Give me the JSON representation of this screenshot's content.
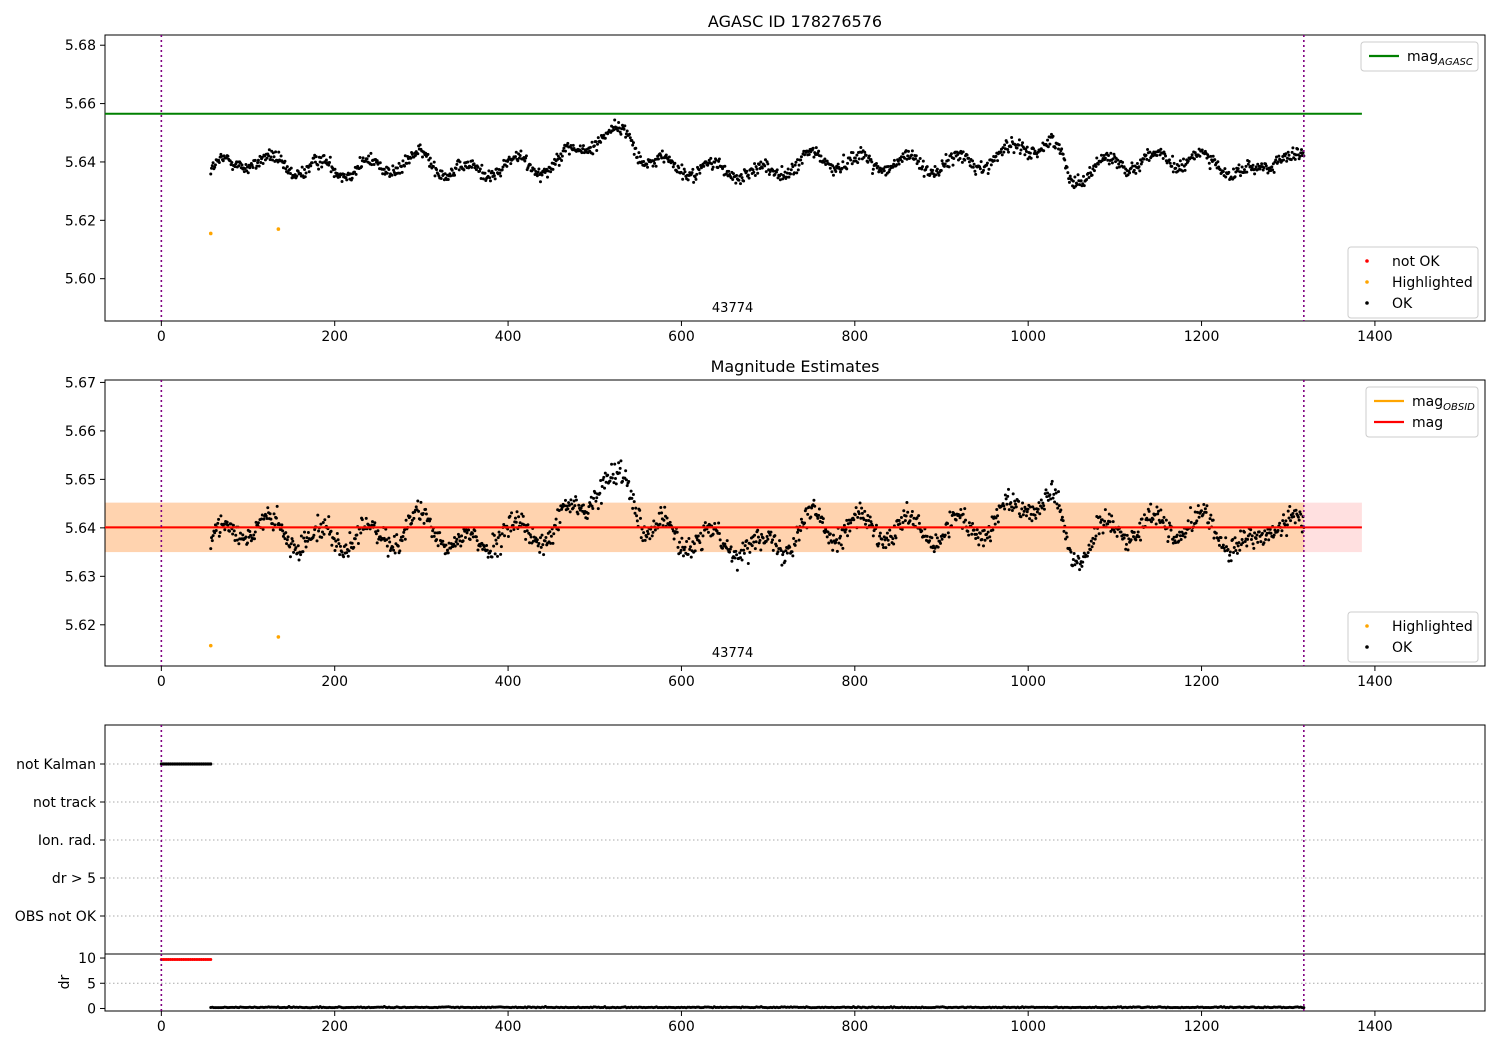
{
  "chart_data": [
    {
      "type": "scatter",
      "title": "AGASC ID 178276576",
      "xlabel": "",
      "ylabel": "",
      "xlim": [
        -65,
        1527
      ],
      "ylim": [
        5.5855,
        5.6835
      ],
      "xticks": [
        0,
        200,
        400,
        600,
        800,
        1000,
        1200,
        1400
      ],
      "yticks": [
        5.6,
        5.62,
        5.64,
        5.66,
        5.68
      ],
      "ytick_format": 2,
      "vlines": [
        0,
        1318
      ],
      "hlines": [
        {
          "name": "mag_AGASC",
          "y": 5.6565,
          "x_range": [
            -65,
            1385
          ],
          "color": "#008000"
        }
      ],
      "obsid_label": {
        "text": "43774",
        "x": 659
      },
      "legend_lines": [
        {
          "label": "mag",
          "sub": "AGASC",
          "color": "#008000"
        }
      ],
      "legend_points": [
        {
          "label": "not OK",
          "color": "#ff0000"
        },
        {
          "label": "Highlighted",
          "color": "#ffa500"
        },
        {
          "label": "OK",
          "color": "#000000"
        }
      ],
      "series": [
        {
          "name": "Highlighted",
          "color": "#ffa500",
          "points": [
            [
              57,
              5.6155
            ],
            [
              135,
              5.617
            ]
          ]
        },
        {
          "name": "OK",
          "color": "#000000",
          "x_range": [
            57,
            1318
          ],
          "n": 1400,
          "trend": [
            [
              57,
              5.637
            ],
            [
              100,
              5.641
            ],
            [
              150,
              5.638
            ],
            [
              250,
              5.638
            ],
            [
              300,
              5.641
            ],
            [
              350,
              5.636
            ],
            [
              400,
              5.639
            ],
            [
              450,
              5.639
            ],
            [
              480,
              5.644
            ],
            [
              500,
              5.648
            ],
            [
              540,
              5.65
            ],
            [
              560,
              5.64
            ],
            [
              600,
              5.638
            ],
            [
              700,
              5.636
            ],
            [
              750,
              5.641
            ],
            [
              800,
              5.64
            ],
            [
              900,
              5.639
            ],
            [
              960,
              5.641
            ],
            [
              1000,
              5.646
            ],
            [
              1030,
              5.645
            ],
            [
              1050,
              5.635
            ],
            [
              1100,
              5.64
            ],
            [
              1200,
              5.641
            ],
            [
              1260,
              5.635
            ],
            [
              1290,
              5.643
            ],
            [
              1318,
              5.639
            ]
          ],
          "spread": 0.0045
        }
      ]
    },
    {
      "type": "scatter",
      "title": "Magnitude Estimates",
      "xlabel": "",
      "ylabel": "",
      "xlim": [
        -65,
        1527
      ],
      "ylim": [
        5.6115,
        5.6705
      ],
      "xticks": [
        0,
        200,
        400,
        600,
        800,
        1000,
        1200,
        1400
      ],
      "yticks": [
        5.62,
        5.63,
        5.64,
        5.65,
        5.66,
        5.67
      ],
      "ytick_format": 2,
      "vlines": [
        0,
        1318
      ],
      "bands": [
        {
          "y": [
            5.635,
            5.6452
          ],
          "x_range": [
            -65,
            1385
          ],
          "color": "#ff0000",
          "opacity": 0.12
        },
        {
          "y": [
            5.635,
            5.6452
          ],
          "x_range": [
            -65,
            1318
          ],
          "color": "#ffa500",
          "opacity": 0.22
        }
      ],
      "hlines": [
        {
          "name": "mag_OBSID",
          "y": 5.6401,
          "x_range": [
            -65,
            1318
          ],
          "color": "#ffa500"
        },
        {
          "name": "mag",
          "y": 5.6401,
          "x_range": [
            -65,
            1385
          ],
          "color": "#ff0000"
        }
      ],
      "obsid_label": {
        "text": "43774",
        "x": 659
      },
      "legend_lines": [
        {
          "label": "mag",
          "sub": "OBSID",
          "color": "#ffa500"
        },
        {
          "label": "mag",
          "sub": "",
          "color": "#ff0000"
        }
      ],
      "legend_points": [
        {
          "label": "Highlighted",
          "color": "#ffa500"
        },
        {
          "label": "OK",
          "color": "#000000"
        }
      ],
      "series": [
        {
          "name": "Highlighted",
          "color": "#ffa500",
          "points": [
            [
              57,
              5.6157
            ],
            [
              135,
              5.6175
            ]
          ]
        },
        {
          "name": "OK",
          "color": "#000000",
          "x_range": [
            57,
            1318
          ],
          "n": 1400,
          "trend": [
            [
              57,
              5.637
            ],
            [
              100,
              5.641
            ],
            [
              150,
              5.638
            ],
            [
              250,
              5.638
            ],
            [
              300,
              5.641
            ],
            [
              350,
              5.636
            ],
            [
              400,
              5.639
            ],
            [
              450,
              5.639
            ],
            [
              480,
              5.644
            ],
            [
              500,
              5.648
            ],
            [
              540,
              5.65
            ],
            [
              560,
              5.64
            ],
            [
              600,
              5.638
            ],
            [
              700,
              5.636
            ],
            [
              750,
              5.641
            ],
            [
              800,
              5.64
            ],
            [
              900,
              5.639
            ],
            [
              960,
              5.641
            ],
            [
              1000,
              5.646
            ],
            [
              1030,
              5.645
            ],
            [
              1050,
              5.635
            ],
            [
              1100,
              5.64
            ],
            [
              1200,
              5.641
            ],
            [
              1260,
              5.635
            ],
            [
              1290,
              5.643
            ],
            [
              1318,
              5.639
            ]
          ],
          "spread": 0.0045
        }
      ]
    },
    {
      "type": "scatter",
      "title": "",
      "xlabel": "",
      "ylabel": "",
      "xlim": [
        -65,
        1527
      ],
      "categories": [
        "not Kalman",
        "not track",
        "Ion. rad.",
        "dr > 5",
        "OBS not OK"
      ],
      "vlines": [
        0,
        1318
      ],
      "series": [
        {
          "name": "not Kalman",
          "category": "not Kalman",
          "color": "#000000",
          "x_range": [
            0,
            57
          ],
          "n": 28
        }
      ]
    },
    {
      "type": "scatter",
      "title": "",
      "xlabel": "",
      "ylabel": "dr",
      "xlim": [
        -65,
        1527
      ],
      "ylim": [
        -0.5,
        10.8
      ],
      "yticks": [
        0,
        5,
        10
      ],
      "ytick_format": 0,
      "hlines_dotted": [
        5
      ],
      "vlines": [
        0,
        1318
      ],
      "series": [
        {
          "name": "dr clipped",
          "color": "#ff0000",
          "x_range": [
            0,
            57
          ],
          "y": 9.7,
          "n": 28
        },
        {
          "name": "dr",
          "color": "#000000",
          "x_range": [
            57,
            1318
          ],
          "y": 0.15,
          "jitter": 0.15,
          "n": 700
        }
      ]
    }
  ]
}
